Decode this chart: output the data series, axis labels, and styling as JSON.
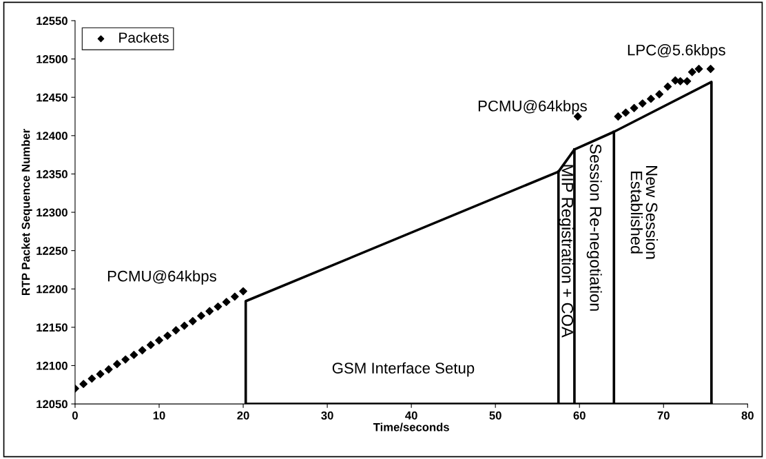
{
  "chart_data": {
    "type": "scatter",
    "xlabel": "Time/seconds",
    "ylabel": "RTP Packet Sequence Number",
    "xlim": [
      0,
      80
    ],
    "ylim": [
      12050,
      12550
    ],
    "xticks": [
      0,
      10,
      20,
      30,
      40,
      50,
      60,
      70,
      80
    ],
    "yticks": [
      12050,
      12100,
      12150,
      12200,
      12250,
      12300,
      12350,
      12400,
      12450,
      12500,
      12550
    ],
    "grid": false,
    "legend": "top left",
    "marker": "diamond",
    "series": [
      {
        "name": "Packets",
        "color": "#000000",
        "x": [
          0,
          1,
          2,
          3,
          4,
          5,
          6,
          7,
          8,
          9,
          10,
          11,
          12,
          13,
          14,
          15,
          16,
          17,
          18,
          19,
          20,
          59.8,
          64.6,
          65.5,
          66.5,
          67.5,
          68.5,
          69.5,
          70.5,
          71.4,
          72.0,
          72.8,
          73.4,
          74.2,
          75.6
        ],
        "values": [
          12070,
          12076,
          12083,
          12089,
          12095,
          12102,
          12108,
          12114,
          12120,
          12127,
          12133,
          12139,
          12146,
          12152,
          12158,
          12165,
          12171,
          12177,
          12183,
          12190,
          12197,
          12425,
          12425,
          12430,
          12436,
          12442,
          12448,
          12454,
          12464,
          12472,
          12471,
          12471,
          12483,
          12487,
          12487
        ]
      },
      {
        "type": "line",
        "color": "#000000",
        "marker": "none",
        "line_style": "solid",
        "x": [
          20.3,
          20.3,
          57.5,
          59.4,
          64.1,
          75.7,
          75.7
        ],
        "values": [
          12050,
          12184,
          12353,
          12382,
          12405,
          12470,
          12050
        ]
      },
      {
        "type": "line",
        "color": "#000000",
        "marker": "none",
        "line_style": "solid",
        "x": [
          20.3,
          75.7
        ],
        "values": [
          12050,
          12050
        ]
      },
      {
        "type": "line",
        "color": "#000000",
        "marker": "none",
        "line_style": "solid",
        "x": [
          57.5,
          57.5
        ],
        "values": [
          12050,
          12353
        ]
      },
      {
        "type": "line",
        "color": "#000000",
        "marker": "none",
        "line_style": "solid",
        "x": [
          59.4,
          59.4
        ],
        "values": [
          12050,
          12382
        ]
      },
      {
        "type": "line",
        "color": "#000000",
        "marker": "none",
        "line_style": "solid",
        "x": [
          64.1,
          64.1
        ],
        "values": [
          12050,
          12405
        ]
      }
    ],
    "annotations": [
      "PCMU@64kbps",
      "PCMU@64kbps",
      "LPC@5.6kbps",
      "GSM Interface Setup",
      "MIP Registration + COA",
      "Session Re-negotiation",
      "New Session\nEstablished"
    ]
  }
}
